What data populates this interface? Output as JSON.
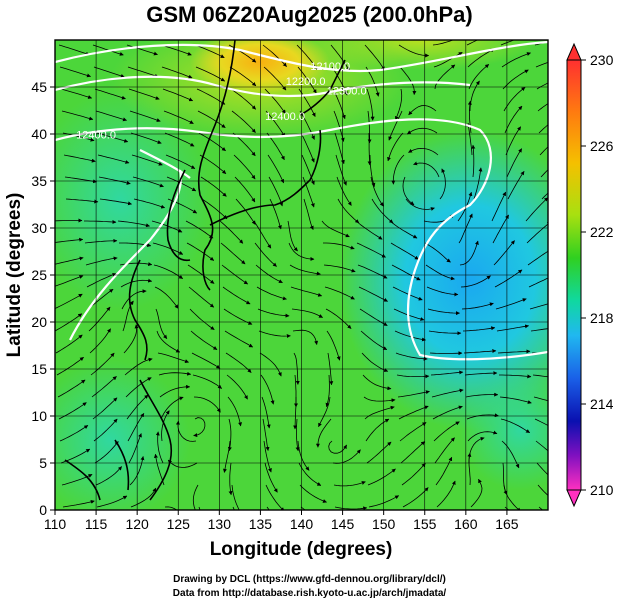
{
  "title": "GSM 06Z20Aug2025 (200.0hPa)",
  "xlabel": "Longitude (degrees)",
  "ylabel": "Latitude  (degrees)",
  "x_ticks": [
    "110",
    "115",
    "120",
    "125",
    "130",
    "135",
    "140",
    "145",
    "150",
    "155",
    "160",
    "165"
  ],
  "x_tick_values": [
    110,
    115,
    120,
    125,
    130,
    135,
    140,
    145,
    150,
    155,
    160,
    165
  ],
  "y_ticks": [
    "0",
    "5",
    "10",
    "15",
    "20",
    "25",
    "30",
    "35",
    "40",
    "45"
  ],
  "y_tick_values": [
    0,
    5,
    10,
    15,
    20,
    25,
    30,
    35,
    40,
    45
  ],
  "xlim": [
    110,
    170
  ],
  "ylim": [
    0,
    50
  ],
  "colorbar": {
    "ticks": [
      "230",
      "226",
      "222",
      "218",
      "214",
      "210"
    ],
    "tick_values": [
      230,
      226,
      222,
      218,
      214,
      210
    ],
    "range": [
      210,
      230
    ]
  },
  "contour_labels": [
    {
      "text": "12100.0",
      "lon": 143.5,
      "lat": 46.8
    },
    {
      "text": "12200.0",
      "lon": 140.5,
      "lat": 45.2
    },
    {
      "text": "12300.0",
      "lon": 145.5,
      "lat": 44.2
    },
    {
      "text": "12400.0",
      "lon": 138.0,
      "lat": 41.5
    },
    {
      "text": "12400.0",
      "lon": 115.0,
      "lat": 39.5
    }
  ],
  "credits": {
    "line1": "Drawing by DCL (https://www.gfd-dennou.org/library/dcl/)",
    "line2": "Data from http://database.rish.kyoto-u.ac.jp/arch/jmadata/"
  }
}
